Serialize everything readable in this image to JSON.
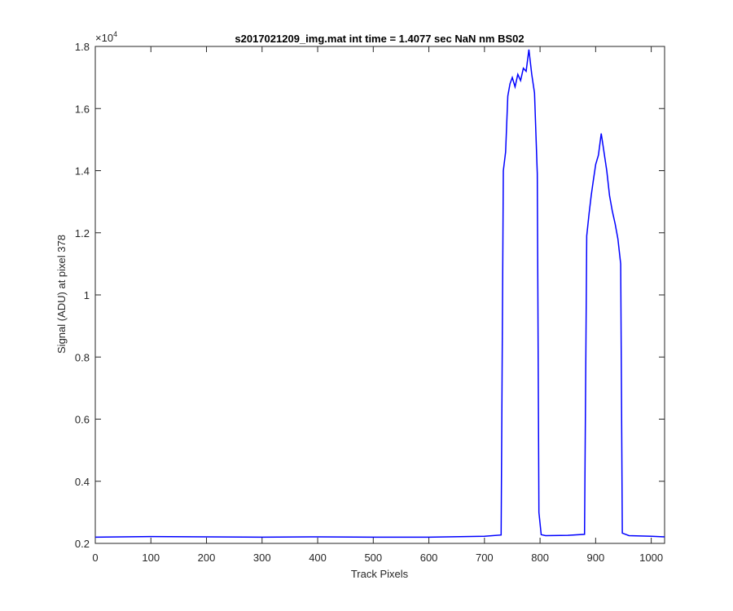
{
  "chart_data": {
    "type": "line",
    "title": "s2017021209_img.mat int time = 1.4077 sec  NaN nm BS02",
    "xlabel": "Track Pixels",
    "ylabel": "Signal (ADU) at pixel 378",
    "y_exponent_label": "×10",
    "y_exponent_power": "4",
    "xlim": [
      0,
      1024
    ],
    "ylim": [
      2000,
      18000
    ],
    "x_ticks": [
      0,
      100,
      200,
      300,
      400,
      500,
      600,
      700,
      800,
      900,
      1000
    ],
    "x_tick_labels": [
      "0",
      "100",
      "200",
      "300",
      "400",
      "500",
      "600",
      "700",
      "800",
      "900",
      "1000"
    ],
    "y_ticks": [
      2000,
      4000,
      6000,
      8000,
      10000,
      12000,
      14000,
      16000,
      18000
    ],
    "y_tick_labels": [
      "0.2",
      "0.4",
      "0.6",
      "0.8",
      "1",
      "1.2",
      "1.4",
      "1.6",
      "1.8"
    ],
    "grid": false,
    "series_color": "#0000ff",
    "series": [
      {
        "x": [
          0,
          100,
          200,
          300,
          400,
          500,
          600,
          700,
          730,
          734,
          738,
          742,
          746,
          750,
          755,
          760,
          765,
          770,
          775,
          780,
          785,
          790,
          795,
          798,
          802,
          810,
          850,
          880,
          884,
          888,
          892,
          896,
          900,
          905,
          910,
          915,
          920,
          925,
          930,
          935,
          940,
          945,
          948,
          960,
          1000,
          1024
        ],
        "y": [
          2200,
          2220,
          2210,
          2200,
          2210,
          2200,
          2200,
          2230,
          2270,
          14000,
          14600,
          16400,
          16800,
          17000,
          16700,
          17100,
          16900,
          17300,
          17200,
          17900,
          17100,
          16500,
          13900,
          3000,
          2280,
          2250,
          2260,
          2290,
          11900,
          12600,
          13200,
          13700,
          14200,
          14500,
          15200,
          14600,
          14000,
          13200,
          12700,
          12300,
          11800,
          11000,
          2330,
          2250,
          2230,
          2210
        ]
      }
    ]
  }
}
